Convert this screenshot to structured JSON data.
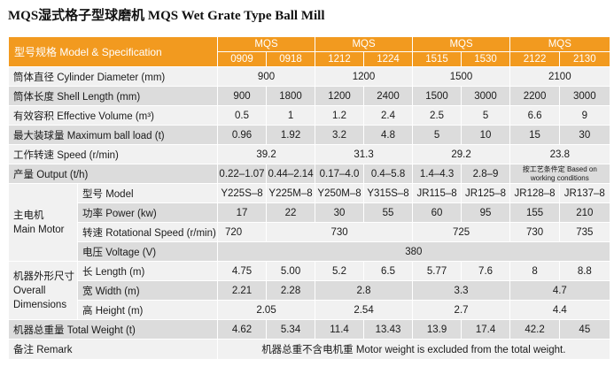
{
  "title": "MQS湿式格子型球磨机  MQS Wet Grate Type Ball Mill",
  "table": {
    "spec_header": "型号规格 Model & Specification",
    "group_label": "MQS",
    "sizes": [
      "0909",
      "0918",
      "1212",
      "1224",
      "1515",
      "1530",
      "2122",
      "2130"
    ],
    "rows": {
      "diameter": {
        "label": "筒体直径 Cylinder Diameter (mm)",
        "values": [
          "900",
          "1200",
          "1500",
          "2100"
        ]
      },
      "length": {
        "label": "筒体长度 Shell Length (mm)",
        "values": [
          "900",
          "1800",
          "1200",
          "2400",
          "1500",
          "3000",
          "2200",
          "3000"
        ]
      },
      "volume": {
        "label": "有效容积 Effective Volume (m³)",
        "values": [
          "0.5",
          "1",
          "1.2",
          "2.4",
          "2.5",
          "5",
          "6.6",
          "9"
        ]
      },
      "ball_load": {
        "label": "最大装球量 Maximum ball load (t)",
        "values": [
          "0.96",
          "1.92",
          "3.2",
          "4.8",
          "5",
          "10",
          "15",
          "30"
        ]
      },
      "speed": {
        "label": "工作转速 Speed (r/min)",
        "values": [
          "39.2",
          "31.3",
          "29.2",
          "23.8"
        ]
      },
      "output": {
        "label": "产量 Output (t/h)",
        "values": [
          "0.22–1.07",
          "0.44–2.14",
          "0.17–4.0",
          "0.4–5.8",
          "1.4–4.3",
          "2.8–9"
        ],
        "note": "按工艺条件定\nBased on working conditions"
      },
      "motor_group": "主电机\nMain Motor",
      "motor_model": {
        "label": "型号 Model",
        "values": [
          "Y225S–8",
          "Y225M–8",
          "Y250M–8",
          "Y315S–8",
          "JR115–8",
          "JR125–8",
          "JR128–8",
          "JR137–8"
        ]
      },
      "motor_power": {
        "label": "功率 Power (kw)",
        "values": [
          "17",
          "22",
          "30",
          "55",
          "60",
          "95",
          "155",
          "210"
        ]
      },
      "motor_speed": {
        "label": "转速 Rotational Speed (r/min)",
        "values": [
          "720",
          "730",
          "725",
          "730",
          "735"
        ]
      },
      "motor_voltage": {
        "label": "电压 Voltage (V)",
        "value": "380"
      },
      "dims_group": "机器外形尺寸\nOverall\nDimensions",
      "dim_length": {
        "label": "长 Length (m)",
        "values": [
          "4.75",
          "5.00",
          "5.2",
          "6.5",
          "5.77",
          "7.6",
          "8",
          "8.8"
        ]
      },
      "dim_width": {
        "label": "宽 Width (m)",
        "values": [
          "2.21",
          "2.28",
          "2.8",
          "3.3",
          "4.7"
        ]
      },
      "dim_height": {
        "label": "高 Height (m)",
        "values": [
          "2.05",
          "2.54",
          "2.7",
          "4.4"
        ]
      },
      "weight": {
        "label": "机器总重量 Total Weight (t)",
        "values": [
          "4.62",
          "5.34",
          "11.4",
          "13.43",
          "13.9",
          "17.4",
          "42.2",
          "45"
        ]
      },
      "remark": {
        "label": "备注 Remark",
        "value": "机器总重不含电机重 Motor weight is excluded from the total weight."
      }
    }
  }
}
